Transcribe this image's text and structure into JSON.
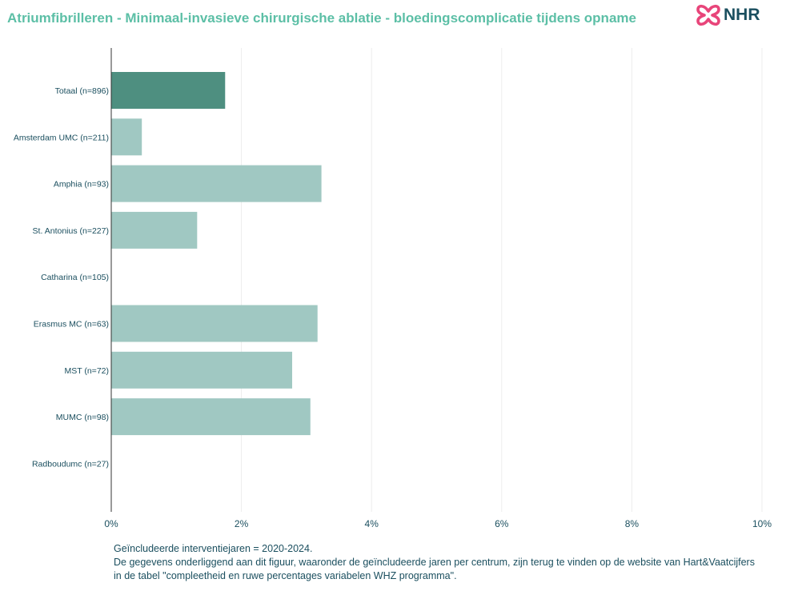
{
  "title": "Atriumfibrilleren - Minimaal-invasieve chirurgische ablatie - bloedingscomplicatie tijdens opname",
  "logo": {
    "text": "NHR",
    "icon": "nhr-cross-icon",
    "icon_color": "#e8457a",
    "text_color": "#1b4f5f"
  },
  "colors": {
    "highlight_bar": "#4e8f80",
    "bar": "#a0c8c2",
    "axis_text": "#1b4f5f",
    "title": "#5cbfa6",
    "grid": "#ececec"
  },
  "chart_data": {
    "type": "bar",
    "orientation": "horizontal",
    "categories": [
      "Totaal (n=896)",
      "Amsterdam UMC (n=211)",
      "Amphia (n=93)",
      "St. Antonius (n=227)",
      "Catharina (n=105)",
      "Erasmus MC (n=63)",
      "MST (n=72)",
      "MUMC (n=98)",
      "Radboudumc (n=27)"
    ],
    "values": [
      1.75,
      0.47,
      3.23,
      1.32,
      0,
      3.17,
      2.78,
      3.06,
      0
    ],
    "highlight": "Totaal (n=896)",
    "xlim": [
      0,
      10
    ],
    "xticks": [
      0,
      2,
      4,
      6,
      8,
      10
    ],
    "xtick_labels": [
      "0%",
      "2%",
      "4%",
      "6%",
      "8%",
      "10%"
    ],
    "xlabel": "",
    "ylabel": "",
    "grid": true
  },
  "notes": [
    "Geïncludeerde interventiejaren = 2020-2024.",
    "De gegevens onderliggend aan dit figuur, waaronder de geïncludeerde jaren per centrum, zijn terug te vinden op de website van Hart&Vaatcijfers",
    "in de tabel \"compleetheid en ruwe percentages variabelen WHZ programma\"."
  ]
}
